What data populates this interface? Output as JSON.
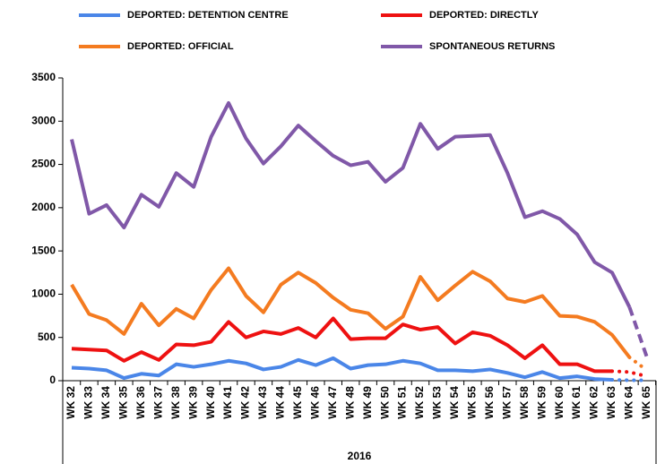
{
  "chart_data": {
    "type": "line",
    "categories": [
      "WK 32",
      "WK 33",
      "WK 34",
      "WK 35",
      "WK 36",
      "WK 37",
      "WK 38",
      "WK 39",
      "WK 40",
      "WK 41",
      "WK 42",
      "WK 43",
      "WK 44",
      "WK 45",
      "WK 46",
      "WK 47",
      "WK 48",
      "WK 49",
      "WK 50",
      "WK 51",
      "WK 52",
      "WK 53",
      "WK 54",
      "WK 55",
      "WK 56",
      "WK 57",
      "WK 58",
      "WK 59",
      "WK 60",
      "WK 61",
      "WK 62",
      "WK 63",
      "WK 64",
      "WK 65"
    ],
    "group_label": "2016",
    "ylim": [
      0,
      3500
    ],
    "yticks": [
      0,
      500,
      1000,
      1500,
      2000,
      2500,
      3000,
      3500
    ],
    "series": [
      {
        "name": "DEPORTED: DETENTION CENTRE",
        "color": "#4a86e8",
        "projection": {
          "from": 31,
          "style": "dotted"
        },
        "values": [
          150,
          140,
          120,
          30,
          80,
          60,
          190,
          160,
          190,
          230,
          200,
          130,
          160,
          240,
          180,
          260,
          140,
          180,
          190,
          230,
          200,
          120,
          120,
          110,
          130,
          90,
          40,
          100,
          30,
          50,
          20,
          10,
          5,
          5
        ]
      },
      {
        "name": "DEPORTED: DIRECTLY",
        "color": "#ee1111",
        "projection": {
          "from": 31,
          "style": "dotted"
        },
        "values": [
          370,
          360,
          350,
          230,
          330,
          240,
          420,
          410,
          450,
          680,
          500,
          570,
          540,
          610,
          500,
          720,
          480,
          490,
          490,
          650,
          590,
          620,
          430,
          560,
          520,
          410,
          260,
          410,
          190,
          190,
          110,
          110,
          100,
          50
        ]
      },
      {
        "name": "DEPORTED: OFFICIAL",
        "color": "#f47b20",
        "projection": {
          "from": 32,
          "style": "dotted"
        },
        "values": [
          1110,
          770,
          700,
          540,
          890,
          640,
          830,
          720,
          1050,
          1300,
          980,
          790,
          1110,
          1250,
          1130,
          960,
          820,
          780,
          600,
          740,
          1200,
          930,
          1100,
          1260,
          1150,
          950,
          910,
          980,
          750,
          740,
          680,
          530,
          270,
          120
        ]
      },
      {
        "name": "SPONTANEOUS RETURNS",
        "color": "#8058a8",
        "projection": {
          "from": 32,
          "style": "dashed"
        },
        "values": [
          2790,
          1930,
          2030,
          1770,
          2150,
          2010,
          2400,
          2240,
          2820,
          3210,
          2800,
          2510,
          2710,
          2950,
          2770,
          2600,
          2490,
          2530,
          2300,
          2460,
          2970,
          2680,
          2820,
          2830,
          2840,
          2400,
          1890,
          1960,
          1870,
          1690,
          1370,
          1250,
          850,
          270
        ]
      }
    ]
  }
}
